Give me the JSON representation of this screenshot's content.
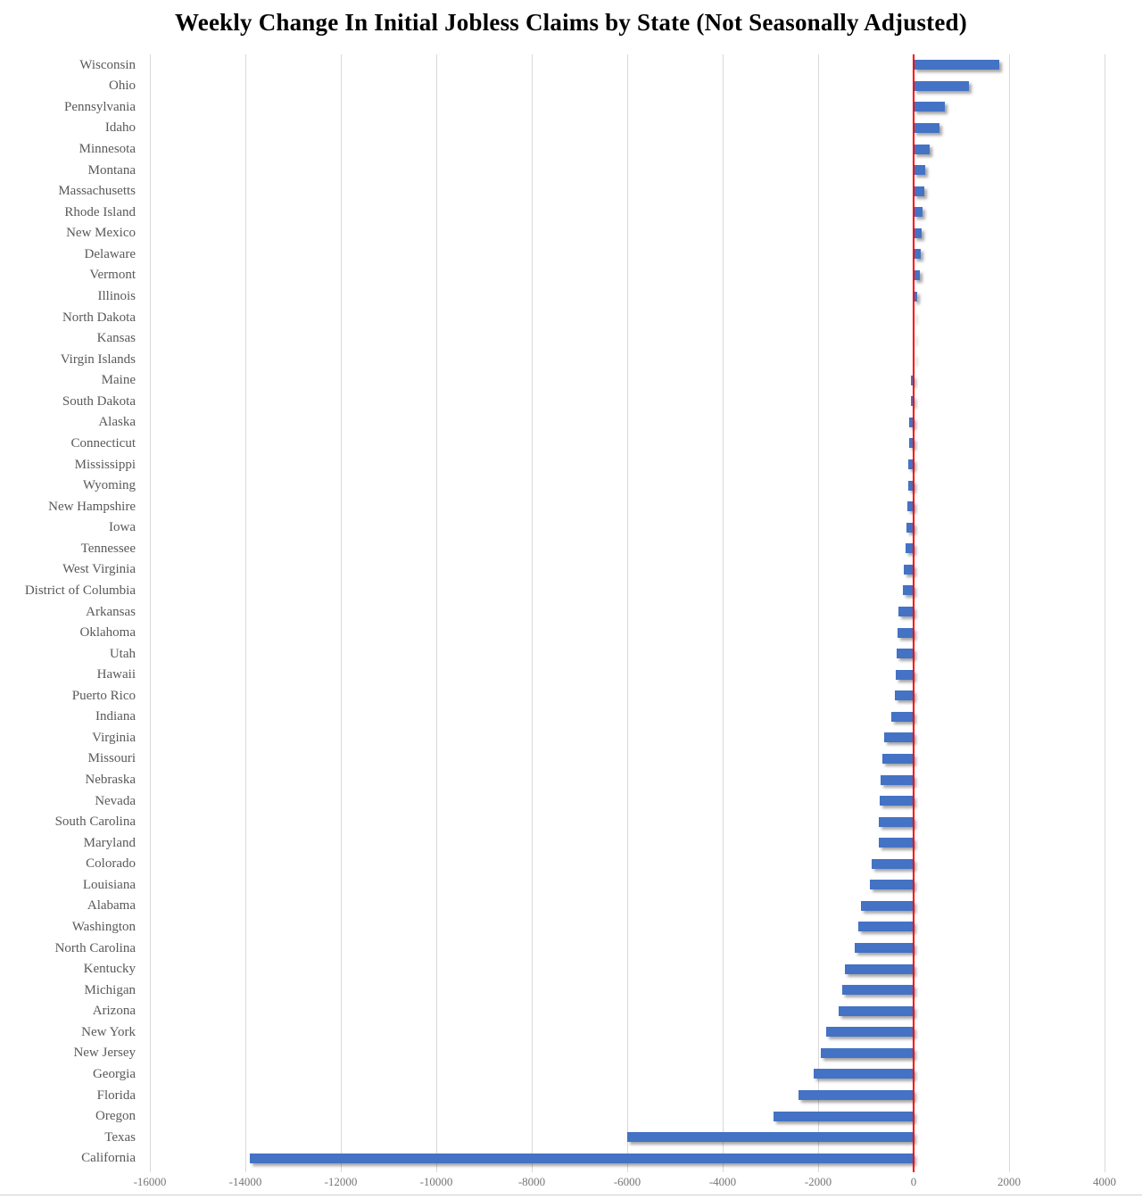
{
  "title": "Weekly Change In Initial Jobless Claims by State (Not Seasonally Adjusted)",
  "chart_data": {
    "type": "bar",
    "orientation": "horizontal",
    "title": "Weekly Change In Initial Jobless Claims by State (Not Seasonally Adjusted)",
    "xlabel": "",
    "ylabel": "",
    "xlim": [
      -16000,
      4000
    ],
    "x_ticks": [
      -16000,
      -14000,
      -12000,
      -10000,
      -8000,
      -6000,
      -4000,
      -2000,
      0,
      2000,
      4000
    ],
    "x_tick_labels": [
      "-16000",
      "-14000",
      "-12000",
      "-10000",
      "-8000",
      "-6000",
      "-4000",
      "-2000",
      "0",
      "2000",
      "4000"
    ],
    "grid": "vertical",
    "legend": "none",
    "colors": {
      "bar": "#4472C4",
      "zero_line": "#FF0000",
      "gridline": "#D9D9D9",
      "category_label": "#595959",
      "tick_label": "#767676",
      "title": "#000000"
    },
    "categories": [
      "Wisconsin",
      "Ohio",
      "Pennsylvania",
      "Idaho",
      "Minnesota",
      "Montana",
      "Massachusetts",
      "Rhode Island",
      "New Mexico",
      "Delaware",
      "Vermont",
      "Illinois",
      "North Dakota",
      "Kansas",
      "Virgin Islands",
      "Maine",
      "South Dakota",
      "Alaska",
      "Connecticut",
      "Mississippi",
      "Wyoming",
      "New Hampshire",
      "Iowa",
      "Tennessee",
      "West Virginia",
      "District of Columbia",
      "Arkansas",
      "Oklahoma",
      "Utah",
      "Hawaii",
      "Puerto Rico",
      "Indiana",
      "Virginia",
      "Missouri",
      "Nebraska",
      "Nevada",
      "South Carolina",
      "Maryland",
      "Colorado",
      "Louisiana",
      "Alabama",
      "Washington",
      "North Carolina",
      "Kentucky",
      "Michigan",
      "Arizona",
      "New York",
      "New Jersey",
      "Georgia",
      "Florida",
      "Oregon",
      "Texas",
      "California"
    ],
    "values": [
      1800,
      1150,
      650,
      540,
      330,
      240,
      225,
      180,
      175,
      145,
      130,
      80,
      15,
      10,
      5,
      -55,
      -65,
      -90,
      -100,
      -110,
      -120,
      -135,
      -150,
      -175,
      -205,
      -230,
      -315,
      -335,
      -350,
      -365,
      -385,
      -460,
      -625,
      -645,
      -700,
      -710,
      -725,
      -735,
      -870,
      -925,
      -1110,
      -1150,
      -1240,
      -1440,
      -1490,
      -1570,
      -1840,
      -1940,
      -2090,
      -2410,
      -2930,
      -6000,
      -13900
    ]
  }
}
